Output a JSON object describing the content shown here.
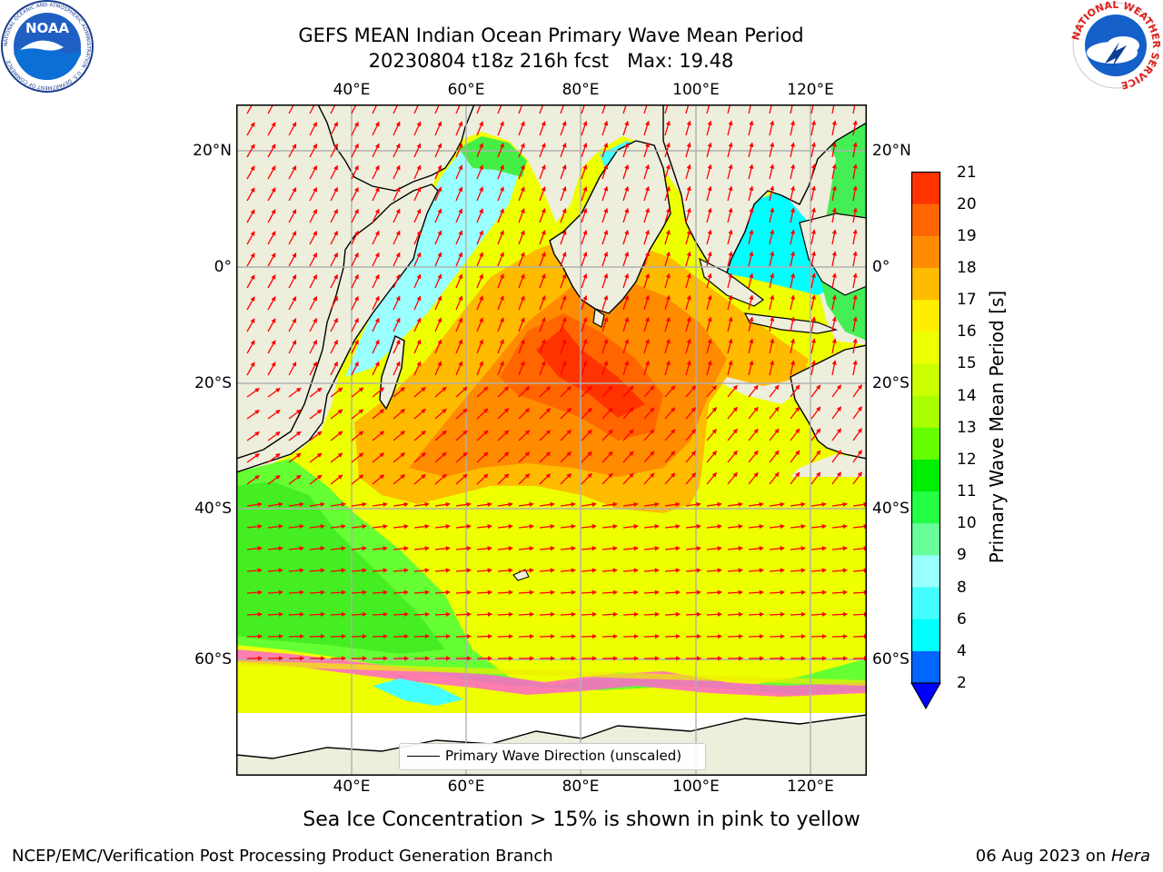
{
  "title": {
    "line1": "GEFS MEAN Indian Ocean Primary Wave Mean Period",
    "line2": "20230804 t18z 216h fcst   Max: 19.48"
  },
  "logos": {
    "left": {
      "name": "noaa-logo",
      "text": "NOAA",
      "ring": "NATIONAL OCEANIC AND ATMOSPHERIC ADMINISTRATION · U.S. DEPARTMENT OF COMMERCE"
    },
    "right": {
      "name": "nws-logo",
      "ring": "NATIONAL WEATHER SERVICE"
    }
  },
  "map": {
    "lon_ticks": [
      "40°E",
      "60°E",
      "80°E",
      "100°E",
      "120°E"
    ],
    "lat_ticks": [
      "20°N",
      "0°",
      "20°S",
      "40°S",
      "60°S"
    ],
    "legend": "Primary Wave Direction (unscaled)"
  },
  "colorbar": {
    "label": "Primary Wave Mean Period [s]",
    "ticks": [
      "21",
      "20",
      "19",
      "18",
      "17",
      "16",
      "15",
      "14",
      "13",
      "12",
      "11",
      "10",
      "9",
      "8",
      "6",
      "4",
      "2"
    ],
    "colors": [
      "#ff0000",
      "#ff3300",
      "#ff6600",
      "#ff8c00",
      "#ffbb00",
      "#ffee00",
      "#eeff00",
      "#ccff00",
      "#aaff00",
      "#66ff00",
      "#00ee00",
      "#22ff44",
      "#66ff99",
      "#99ffff",
      "#44ffff",
      "#00ffff",
      "#0066ff"
    ],
    "extend_color": "#0000ff"
  },
  "caption": "Sea Ice Concentration > 15% is shown in pink to yellow",
  "footer": {
    "left": "NCEP/EMC/Verification Post Processing Product Generation Branch",
    "date": "06 Aug 2023 on ",
    "machine": "Hera"
  }
}
